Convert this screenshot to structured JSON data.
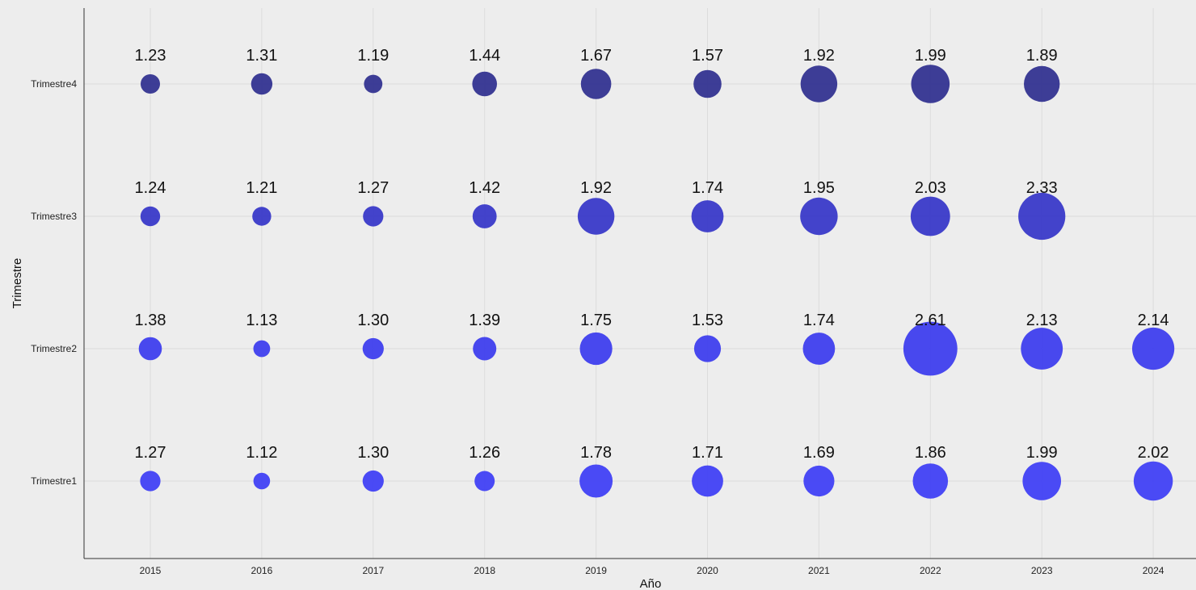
{
  "chart_data": {
    "type": "scatter",
    "subtype": "bubble-grid",
    "xlabel": "Año",
    "ylabel": "Trimestre",
    "x_categories": [
      "2015",
      "2016",
      "2017",
      "2018",
      "2019",
      "2020",
      "2021",
      "2022",
      "2023",
      "2024"
    ],
    "y_categories": [
      "Trimestre1",
      "Trimestre2",
      "Trimestre3",
      "Trimestre4"
    ],
    "grid": true,
    "legend": "none",
    "colors": {
      "Trimestre1": "#3c3cf5",
      "Trimestre2": "#3a3aee",
      "Trimestre3": "#3434c8",
      "Trimestre4": "#2e2e8e"
    },
    "series": [
      {
        "quarter": "Trimestre1",
        "values": [
          1.27,
          1.12,
          1.3,
          1.26,
          1.78,
          1.71,
          1.69,
          1.86,
          1.99,
          2.02
        ],
        "labels": [
          "1.27",
          "1.12",
          "1.30",
          "1.26",
          "1.78",
          "1.71",
          "1.69",
          "1.86",
          "1.99",
          "2.02"
        ]
      },
      {
        "quarter": "Trimestre2",
        "values": [
          1.38,
          1.13,
          1.3,
          1.39,
          1.75,
          1.53,
          1.74,
          2.61,
          2.13,
          2.14
        ],
        "labels": [
          "1.38",
          "1.13",
          "1.30",
          "1.39",
          "1.75",
          "1.53",
          "1.74",
          "2.61",
          "2.13",
          "2.14"
        ]
      },
      {
        "quarter": "Trimestre3",
        "values": [
          1.24,
          1.21,
          1.27,
          1.42,
          1.92,
          1.74,
          1.95,
          2.03,
          2.33,
          null
        ],
        "labels": [
          "1.24",
          "1.21",
          "1.27",
          "1.42",
          "1.92",
          "1.74",
          "1.95",
          "2.03",
          "2.33",
          null
        ]
      },
      {
        "quarter": "Trimestre4",
        "values": [
          1.23,
          1.31,
          1.19,
          1.44,
          1.67,
          1.57,
          1.92,
          1.99,
          1.89,
          null
        ],
        "labels": [
          "1.23",
          "1.31",
          "1.19",
          "1.44",
          "1.67",
          "1.57",
          "1.92",
          "1.99",
          "1.89",
          null
        ]
      }
    ]
  }
}
